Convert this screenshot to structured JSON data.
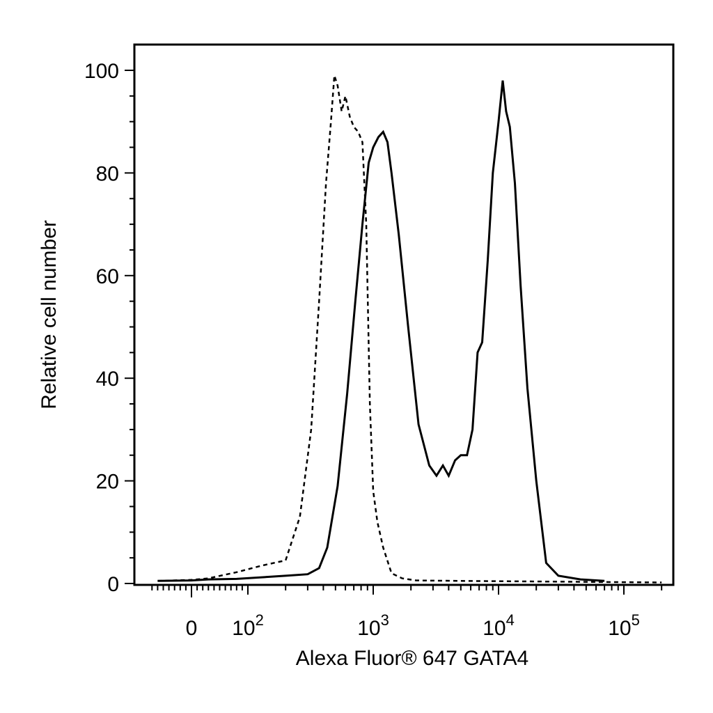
{
  "chart_data": {
    "type": "line",
    "title": "",
    "xlabel": "Alexa Fluor® 647 GATA4",
    "ylabel": "Relative cell number",
    "xscale": "biexponential (log above 100)",
    "xlim": [
      -60,
      220000
    ],
    "ylim": [
      0,
      105
    ],
    "grid": false,
    "legend": "none",
    "y_ticks": [
      {
        "value": 0,
        "label": "0"
      },
      {
        "value": 20,
        "label": "20"
      },
      {
        "value": 40,
        "label": "40"
      },
      {
        "value": 60,
        "label": "60"
      },
      {
        "value": 80,
        "label": "80"
      },
      {
        "value": 100,
        "label": "100"
      }
    ],
    "x_ticks": [
      {
        "value": 0,
        "label": "0",
        "exp": ""
      },
      {
        "value": 100,
        "label": "10",
        "exp": "2"
      },
      {
        "value": 1000,
        "label": "10",
        "exp": "3"
      },
      {
        "value": 10000,
        "label": "10",
        "exp": "4"
      },
      {
        "value": 100000,
        "label": "10",
        "exp": "5"
      }
    ],
    "series": [
      {
        "style": "dashed",
        "x": [
          -60,
          0,
          30,
          80,
          130,
          200,
          260,
          320,
          370,
          420,
          460,
          490,
          520,
          560,
          600,
          650,
          700,
          760,
          820,
          880,
          940,
          1000,
          1080,
          1200,
          1400,
          1700,
          2200,
          5000,
          20000,
          60000,
          200000
        ],
        "y": [
          0.5,
          0.7,
          1.0,
          2.2,
          3.5,
          4.5,
          13,
          30,
          55,
          78,
          90,
          99,
          97,
          92,
          95,
          91,
          89,
          88,
          86,
          70,
          35,
          18,
          12,
          7,
          2,
          1,
          0.6,
          0.5,
          0.4,
          0.3,
          0.2
        ]
      },
      {
        "style": "solid",
        "x": [
          -60,
          0,
          30,
          80,
          200,
          300,
          370,
          430,
          520,
          620,
          720,
          820,
          920,
          1000,
          1100,
          1200,
          1300,
          1400,
          1600,
          1900,
          2300,
          2800,
          3200,
          3600,
          4000,
          4500,
          5000,
          5600,
          6200,
          6800,
          7400,
          8200,
          9000,
          10000,
          10800,
          11500,
          12300,
          13500,
          15000,
          17000,
          20000,
          24000,
          30000,
          45000,
          70000
        ],
        "y": [
          0.5,
          0.6,
          0.8,
          0.9,
          1.5,
          1.8,
          3,
          7,
          19,
          37,
          55,
          70,
          82,
          85,
          87,
          88,
          86,
          80,
          68,
          50,
          31,
          23,
          21,
          23,
          21,
          24,
          25,
          25,
          30,
          45,
          47,
          63,
          80,
          90,
          98,
          92,
          89,
          78,
          58,
          38,
          20,
          4,
          1.5,
          0.8,
          0.5
        ]
      }
    ]
  }
}
